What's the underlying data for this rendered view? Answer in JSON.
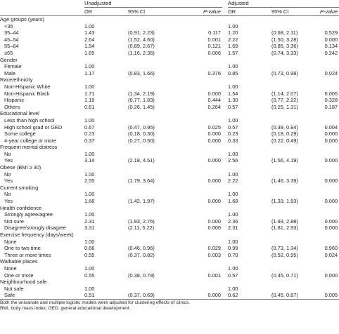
{
  "header": {
    "unadjusted": "Unadjusted",
    "adjusted": "Adjusted",
    "col_or": "OR",
    "col_ci": "95% CI",
    "col_p": "P-value"
  },
  "rows": [
    {
      "label": "Age groups (years)",
      "section": true
    },
    {
      "label": "<35",
      "u_or": "1.00",
      "u_ci": "",
      "u_p": "",
      "a_or": "1.00",
      "a_ci": "",
      "a_p": ""
    },
    {
      "label": "35–44",
      "u_or": "1.43",
      "u_ci": "(0.91, 2.23)",
      "u_p": "0.117",
      "a_or": "1.20",
      "a_ci": "(0.68, 2.11)",
      "a_p": "0.529"
    },
    {
      "label": "45–54",
      "u_or": "2.64",
      "u_ci": "(1.52, 4.60)",
      "u_p": "0.001",
      "a_or": "2.22",
      "a_ci": "(1.50, 3.28)",
      "a_p": "0.000"
    },
    {
      "label": "55–64",
      "u_or": "1.54",
      "u_ci": "(0.89, 2.67)",
      "u_p": "0.121",
      "a_or": "1.69",
      "a_ci": "(0.85, 3.36)",
      "a_p": "0.134"
    },
    {
      "label": "≥65",
      "u_or": "1.65",
      "u_ci": "(1.16, 2.36)",
      "u_p": "0.006",
      "a_or": "1.57",
      "a_ci": "(0.74, 3.33)",
      "a_p": "0.242"
    },
    {
      "label": "Gender",
      "section": true
    },
    {
      "label": "Female",
      "u_or": "1.00",
      "u_ci": "",
      "u_p": "",
      "a_or": "1.00",
      "a_ci": "",
      "a_p": ""
    },
    {
      "label": "Male",
      "u_or": "1.17",
      "u_ci": "(0.83, 1.66)",
      "u_p": "0.376",
      "a_or": "0.85",
      "a_ci": "(0.73, 0.98)",
      "a_p": "0.024"
    },
    {
      "label": "Race/ethnicity",
      "section": true
    },
    {
      "label": "Non-Hispanic White",
      "u_or": "1.00",
      "u_ci": "",
      "u_p": "",
      "a_or": "1.00",
      "a_ci": "",
      "a_p": ""
    },
    {
      "label": "Non-Hispanic Black",
      "u_or": "1.71",
      "u_ci": "(1.34, 2.19)",
      "u_p": "0.000",
      "a_or": "1.54",
      "a_ci": "(1.14, 2.07)",
      "a_p": "0.005"
    },
    {
      "label": "Hispanic",
      "u_or": "1.19",
      "u_ci": "(0.77, 1.83)",
      "u_p": "0.444",
      "a_or": "1.30",
      "a_ci": "(0.77, 2.22)",
      "a_p": "0.328"
    },
    {
      "label": "Others",
      "u_or": "0.61",
      "u_ci": "(0.26, 1.45)",
      "u_p": "0.264",
      "a_or": "0.57",
      "a_ci": "(0.25, 1.31)",
      "a_p": "0.187"
    },
    {
      "label": "Educational level",
      "section": true
    },
    {
      "label": "Less than high school",
      "u_or": "1.00",
      "u_ci": "",
      "u_p": "",
      "a_or": "1.00",
      "a_ci": "",
      "a_p": ""
    },
    {
      "label": "High school grad or GED",
      "u_or": "0.67",
      "u_ci": "(0.47, 0.95)",
      "u_p": "0.025",
      "a_or": "0.57",
      "a_ci": "(0.39, 0.84)",
      "a_p": "0.004"
    },
    {
      "label": "Some college",
      "u_or": "0.23",
      "u_ci": "(0.18, 0.30)",
      "u_p": "0.000",
      "a_or": "0.23",
      "a_ci": "(0.18, 0.29)",
      "a_p": "0.000"
    },
    {
      "label": "4-year college or more",
      "u_or": "0.37",
      "u_ci": "(0.27, 0.50)",
      "u_p": "0.000",
      "a_or": "0.33",
      "a_ci": "(0.22, 0.49)",
      "a_p": "0.000"
    },
    {
      "label": "Frequent mental distress",
      "section": true
    },
    {
      "label": "No",
      "u_or": "1.00",
      "u_ci": "",
      "u_p": "",
      "a_or": "1.00",
      "a_ci": "",
      "a_p": ""
    },
    {
      "label": "Yes",
      "u_or": "3.14",
      "u_ci": "(2.18, 4.51)",
      "u_p": "0.000",
      "a_or": "2.56",
      "a_ci": "(1.56, 4.19)",
      "a_p": "0.000"
    },
    {
      "label": "Obese (BMI ≥ 30)",
      "section": true
    },
    {
      "label": "No",
      "u_or": "1.00",
      "u_ci": "",
      "u_p": "",
      "a_or": "1.00",
      "a_ci": "",
      "a_p": ""
    },
    {
      "label": "Yes",
      "u_or": "2.55",
      "u_ci": "(1.79, 3.64)",
      "u_p": "0.000",
      "a_or": "2.22",
      "a_ci": "(1.46, 3.39)",
      "a_p": "0.000"
    },
    {
      "label": "Current smoking",
      "section": true
    },
    {
      "label": "No",
      "u_or": "1.00",
      "u_ci": "",
      "u_p": "",
      "a_or": "1.00",
      "a_ci": "",
      "a_p": ""
    },
    {
      "label": "Yes",
      "u_or": "1.68",
      "u_ci": "(1.42, 1.97)",
      "u_p": "0.000",
      "a_or": "1.68",
      "a_ci": "(1.33, 1.93)",
      "a_p": "0.000"
    },
    {
      "label": "Health confidence",
      "section": true
    },
    {
      "label": "Strongly agree/agree",
      "u_or": "1.00",
      "u_ci": "",
      "u_p": "",
      "a_or": "1.00",
      "a_ci": "",
      "a_p": ""
    },
    {
      "label": "Not sure",
      "u_or": "2.31",
      "u_ci": "(1.93, 2.76)",
      "u_p": "0.000",
      "a_or": "2.36",
      "a_ci": "(1.93, 2.88)",
      "a_p": "0.000"
    },
    {
      "label": "Disagree/strongly disagree",
      "u_or": "3.31",
      "u_ci": "(2.11, 5.22)",
      "u_p": "0.000",
      "a_or": "2.31",
      "a_ci": "(1.81, 2.93)",
      "a_p": "0.000"
    },
    {
      "label": "Exercise frequency (days/week)",
      "section": true
    },
    {
      "label": "None",
      "u_or": "1.00",
      "u_ci": "",
      "u_p": "",
      "a_or": "1.00",
      "a_ci": "",
      "a_p": ""
    },
    {
      "label": "One to two time",
      "u_or": "0.66",
      "u_ci": "(0.46, 0.96)",
      "u_p": "0.029",
      "a_or": "0.99",
      "a_ci": "(0.73, 1.34)",
      "a_p": "0.960"
    },
    {
      "label": "Three or more times",
      "u_or": "0.55",
      "u_ci": "(0.37, 0.82)",
      "u_p": "0.003",
      "a_or": "0.70",
      "a_ci": "(0.52, 0.95)",
      "a_p": "0.024"
    },
    {
      "label": "Walkable places",
      "section": true
    },
    {
      "label": "None",
      "u_or": "1.00",
      "u_ci": "",
      "u_p": "",
      "a_or": "1.00",
      "a_ci": "",
      "a_p": ""
    },
    {
      "label": "One or more",
      "u_or": "0.55",
      "u_ci": "(0.38, 0.79)",
      "u_p": "0.001",
      "a_or": "0.57",
      "a_ci": "(0.45, 0.71)",
      "a_p": "0.000"
    },
    {
      "label": "Neighbourhood safe",
      "section": true
    },
    {
      "label": "Not safe",
      "u_or": "1.00",
      "u_ci": "",
      "u_p": "",
      "a_or": "1.00",
      "a_ci": "",
      "a_p": ""
    },
    {
      "label": "Safe",
      "u_or": "0.51",
      "u_ci": "(0.37, 0.69)",
      "u_p": "0.000",
      "a_or": "0.62",
      "a_ci": "(0.45, 0.87)",
      "a_p": "0.005"
    }
  ],
  "footnotes": [
    "Both the univariate and multiple logistic models were adjusted for clustering effects of clinics.",
    "BMI, body mass index; GED, general educational development."
  ]
}
